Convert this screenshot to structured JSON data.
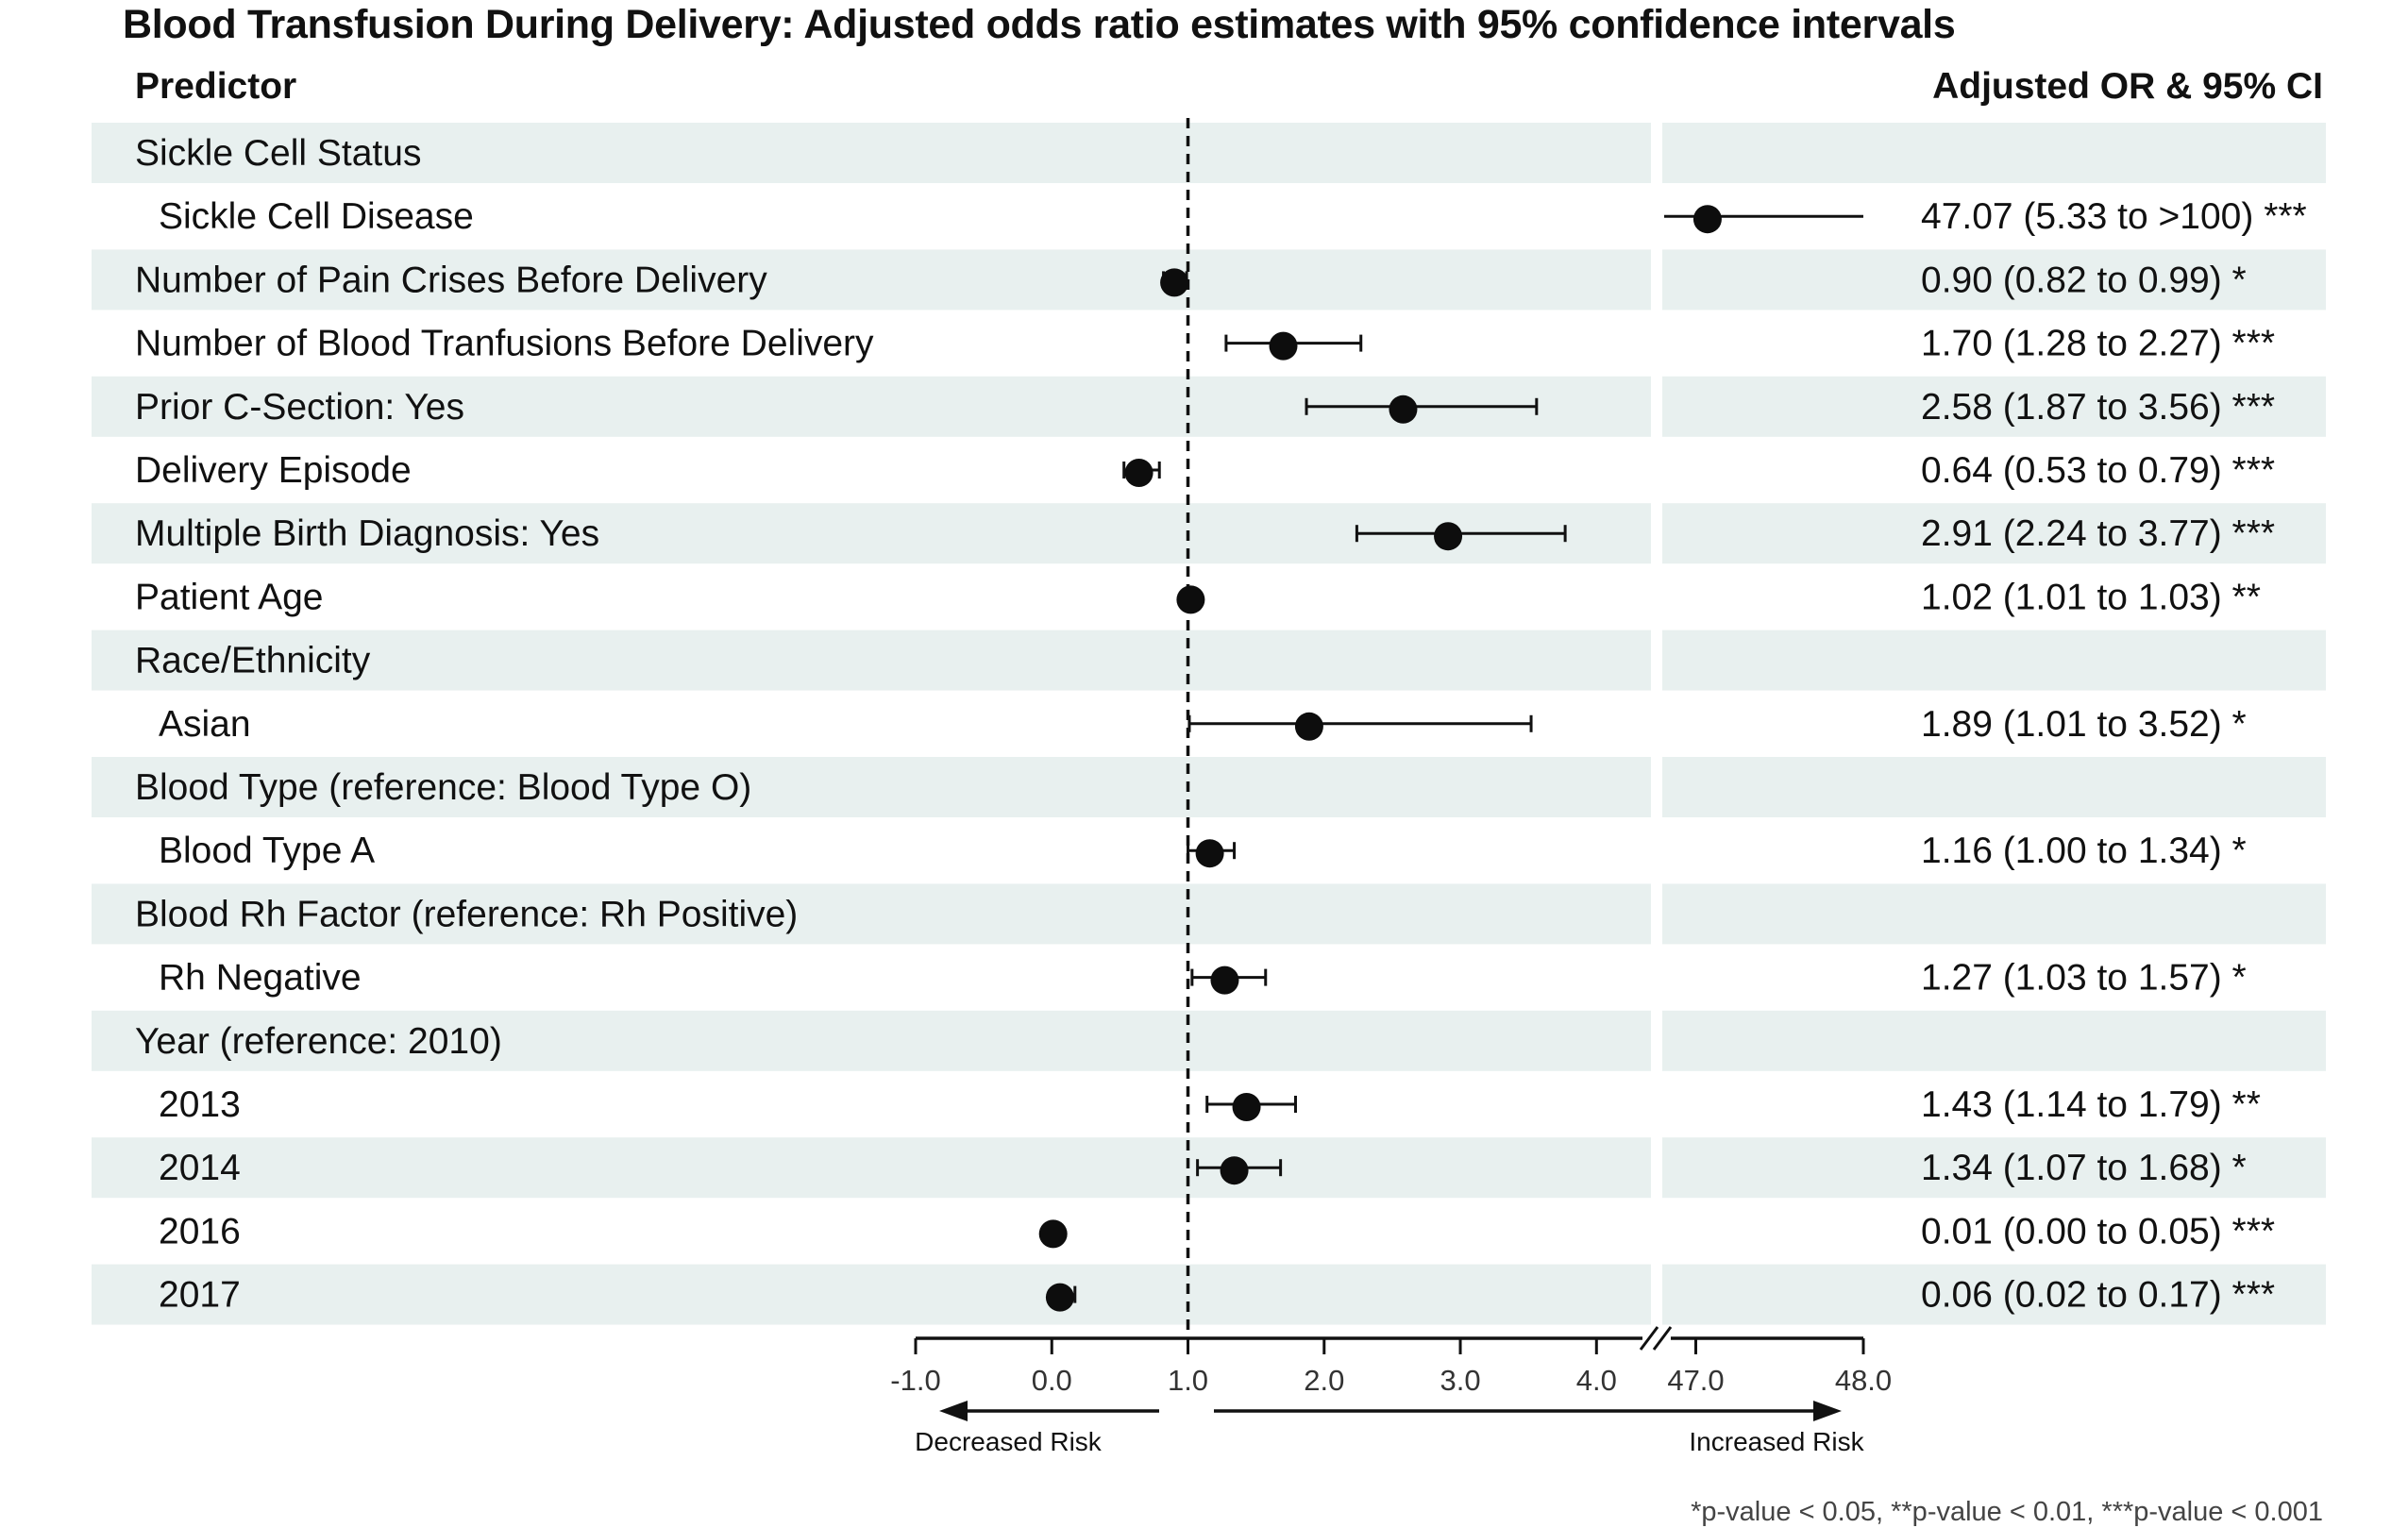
{
  "title": "Blood Transfusion During Delivery: Adjusted odds ratio estimates with 95% confidence intervals",
  "headers": {
    "predictor": "Predictor",
    "estimate": "Adjusted OR & 95% CI"
  },
  "footnote": "*p-value < 0.05, **p-value < 0.01, ***p-value < 0.001",
  "colors": {
    "band": "#e8f0ef",
    "point": "#0d0d0d",
    "line": "#111111"
  },
  "chart_data": {
    "type": "forest",
    "reference_value": 1.0,
    "xaxis": {
      "segments": [
        {
          "range": [
            -1.0,
            4.4
          ]
        },
        {
          "range": [
            46.8,
            48.0
          ]
        }
      ],
      "ticks": [
        "-1.0",
        "0.0",
        "1.0",
        "2.0",
        "3.0",
        "4.0",
        "47.0",
        "48.0"
      ],
      "tick_values": [
        -1.0,
        0.0,
        1.0,
        2.0,
        3.0,
        4.0,
        47.0,
        48.0
      ],
      "decreased_label": "Decreased Risk",
      "increased_label": "Increased Risk"
    },
    "rows": [
      {
        "label": "Sickle Cell Status",
        "indent": false,
        "group": true,
        "or": null,
        "lo": null,
        "hi": null,
        "text": ""
      },
      {
        "label": "Sickle Cell Disease",
        "indent": true,
        "group": false,
        "or": 47.07,
        "lo": 5.33,
        "hi": 100,
        "text": "47.07 (5.33 to >100) ***"
      },
      {
        "label": "Number of Pain Crises Before Delivery",
        "indent": false,
        "group": false,
        "or": 0.9,
        "lo": 0.82,
        "hi": 0.99,
        "text": "0.90 (0.82 to 0.99) *"
      },
      {
        "label": "Number of Blood Tranfusions Before Delivery",
        "indent": false,
        "group": false,
        "or": 1.7,
        "lo": 1.28,
        "hi": 2.27,
        "text": "1.70 (1.28 to 2.27) ***"
      },
      {
        "label": "Prior C-Section: Yes",
        "indent": false,
        "group": false,
        "or": 2.58,
        "lo": 1.87,
        "hi": 3.56,
        "text": "2.58 (1.87 to 3.56) ***"
      },
      {
        "label": "Delivery Episode",
        "indent": false,
        "group": false,
        "or": 0.64,
        "lo": 0.53,
        "hi": 0.79,
        "text": "0.64 (0.53 to 0.79) ***"
      },
      {
        "label": "Multiple Birth Diagnosis: Yes",
        "indent": false,
        "group": false,
        "or": 2.91,
        "lo": 2.24,
        "hi": 3.77,
        "text": "2.91 (2.24 to 3.77) ***"
      },
      {
        "label": "Patient Age",
        "indent": false,
        "group": false,
        "or": 1.02,
        "lo": 1.01,
        "hi": 1.03,
        "text": "1.02 (1.01 to 1.03) **"
      },
      {
        "label": "Race/Ethnicity",
        "indent": false,
        "group": true,
        "or": null,
        "lo": null,
        "hi": null,
        "text": ""
      },
      {
        "label": "Asian",
        "indent": true,
        "group": false,
        "or": 1.89,
        "lo": 1.01,
        "hi": 3.52,
        "text": "1.89 (1.01 to 3.52) *"
      },
      {
        "label": "Blood Type (reference: Blood Type O)",
        "indent": false,
        "group": true,
        "or": null,
        "lo": null,
        "hi": null,
        "text": ""
      },
      {
        "label": "Blood Type A",
        "indent": true,
        "group": false,
        "or": 1.16,
        "lo": 1.0,
        "hi": 1.34,
        "text": "1.16 (1.00 to 1.34) *"
      },
      {
        "label": "Blood Rh Factor (reference: Rh Positive)",
        "indent": false,
        "group": true,
        "or": null,
        "lo": null,
        "hi": null,
        "text": ""
      },
      {
        "label": "Rh Negative",
        "indent": true,
        "group": false,
        "or": 1.27,
        "lo": 1.03,
        "hi": 1.57,
        "text": "1.27 (1.03 to 1.57) *"
      },
      {
        "label": "Year (reference: 2010)",
        "indent": false,
        "group": true,
        "or": null,
        "lo": null,
        "hi": null,
        "text": ""
      },
      {
        "label": "2013",
        "indent": true,
        "group": false,
        "or": 1.43,
        "lo": 1.14,
        "hi": 1.79,
        "text": "1.43 (1.14 to 1.79) **"
      },
      {
        "label": "2014",
        "indent": true,
        "group": false,
        "or": 1.34,
        "lo": 1.07,
        "hi": 1.68,
        "text": "1.34 (1.07 to 1.68) *"
      },
      {
        "label": "2016",
        "indent": true,
        "group": false,
        "or": 0.01,
        "lo": 0.0,
        "hi": 0.05,
        "text": "0.01 (0.00 to 0.05) ***"
      },
      {
        "label": "2017",
        "indent": true,
        "group": false,
        "or": 0.06,
        "lo": 0.02,
        "hi": 0.17,
        "text": "0.06 (0.02 to 0.17) ***"
      }
    ]
  }
}
